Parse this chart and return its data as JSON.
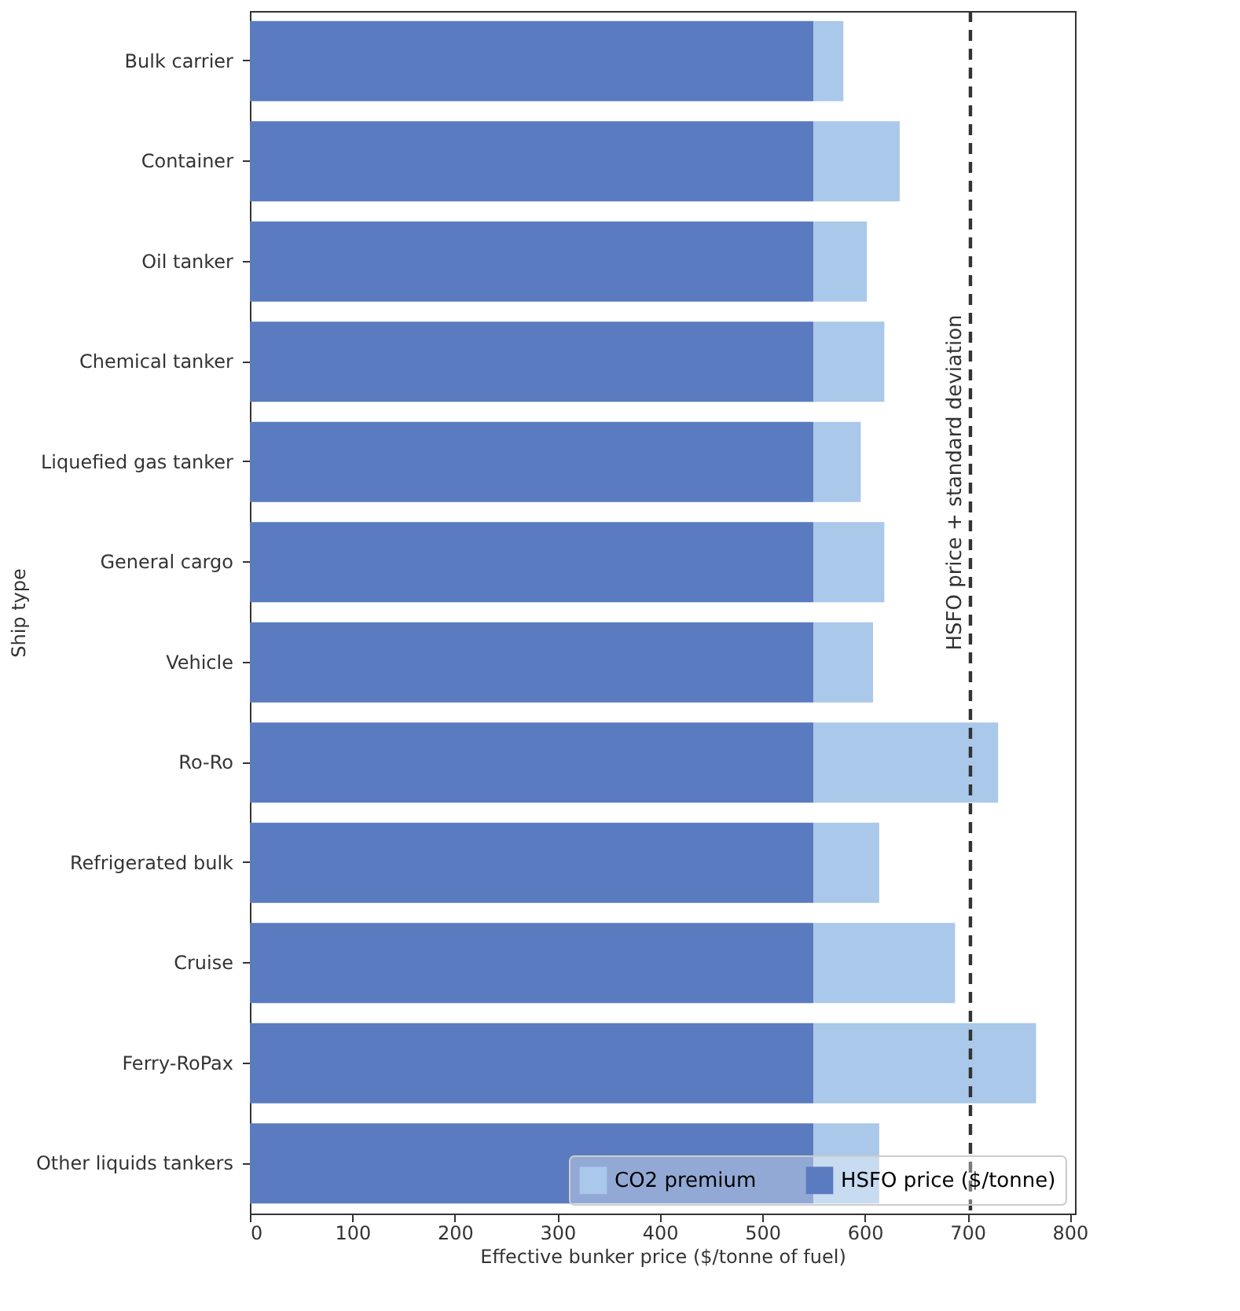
{
  "chart_data": {
    "type": "bar",
    "orientation": "horizontal",
    "stacked": true,
    "xlabel": "Effective bunker price ($/tonne of fuel)",
    "ylabel": "Ship type",
    "categories": [
      "Bulk carrier",
      "Container",
      "Oil tanker",
      "Chemical tanker",
      "Liquefied gas tanker",
      "General cargo",
      "Vehicle",
      "Ro-Ro",
      "Refrigerated bulk",
      "Cruise",
      "Ferry-RoPax",
      "Other liquids tankers"
    ],
    "series": [
      {
        "name": "HSFO price ($/tonne)",
        "color": "#5a7bbf",
        "values": [
          550,
          550,
          550,
          550,
          550,
          550,
          550,
          550,
          550,
          550,
          550,
          550
        ]
      },
      {
        "name": "CO2 premium",
        "color": "#a9c8ea",
        "values": [
          29,
          84,
          52,
          69,
          46,
          69,
          58,
          180,
          64,
          138,
          217,
          64
        ]
      }
    ],
    "xlim": [
      0,
      805
    ],
    "xticks": [
      0,
      100,
      200,
      300,
      400,
      500,
      600,
      700,
      800
    ],
    "ref_lines": [
      {
        "axis": "x",
        "value": 703,
        "label": "HSFO price + standard deviation",
        "color": "#333333",
        "line_style": "dashed"
      }
    ],
    "legend": "bottom right",
    "grid": false
  }
}
